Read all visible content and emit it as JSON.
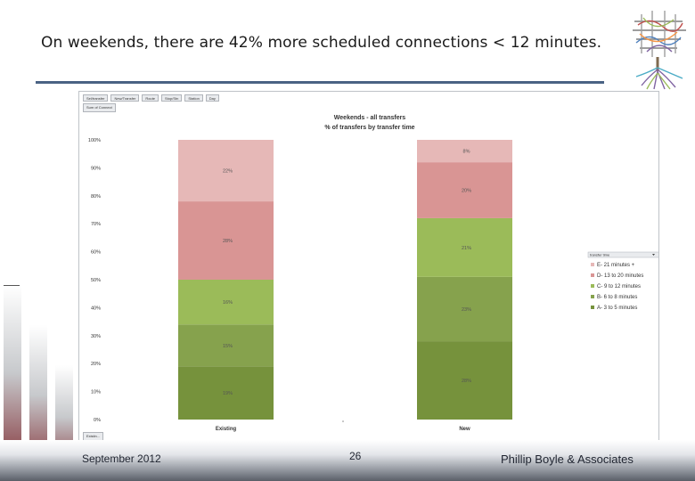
{
  "slide": {
    "title": "On weekends, there are 42% more scheduled connections < 12 minutes.",
    "footer_date": "September 2012",
    "page_number": "26",
    "company": "Phillip Boyle & Associates"
  },
  "pivot_controls": {
    "buttons": [
      "Sel/transfer",
      "New/Transfer",
      "Route",
      "Stop/Stn",
      "Station",
      "Day"
    ],
    "sub_field": "Sum of Connect",
    "bottom_field": "Existin..."
  },
  "colors": {
    "accent_rule": "#4a6384",
    "E": "#e6b8b7",
    "D": "#d99594",
    "C": "#9bbb59",
    "B": "#86a24d",
    "A": "#76923c"
  },
  "chart_data": {
    "type": "bar",
    "stacked": true,
    "title": "Weekends - all transfers",
    "subtitle": "% of transfers by transfer time",
    "categories": [
      "Existing",
      "New"
    ],
    "ylim": [
      0,
      100
    ],
    "yticks": [
      "0%",
      "10%",
      "20%",
      "30%",
      "40%",
      "50%",
      "60%",
      "70%",
      "80%",
      "90%",
      "100%"
    ],
    "legend_title": "transfer time",
    "legend_position": "right",
    "series": [
      {
        "key": "A",
        "name": "A- 3 to 5 minutes",
        "values": [
          19,
          28
        ],
        "labels": [
          "19%",
          "28%"
        ]
      },
      {
        "key": "B",
        "name": "B- 6 to 8 minutes",
        "values": [
          15,
          23
        ],
        "labels": [
          "15%",
          "23%"
        ]
      },
      {
        "key": "C",
        "name": "C- 9 to 12 minutes",
        "values": [
          16,
          21
        ],
        "labels": [
          "16%",
          "21%"
        ]
      },
      {
        "key": "D",
        "name": "D- 13 to 20 minutes",
        "values": [
          28,
          20
        ],
        "labels": [
          "28%",
          "20%"
        ]
      },
      {
        "key": "E",
        "name": "E- 21 minutes +",
        "values": [
          22,
          8
        ],
        "labels": [
          "22%",
          "8%"
        ]
      }
    ]
  }
}
